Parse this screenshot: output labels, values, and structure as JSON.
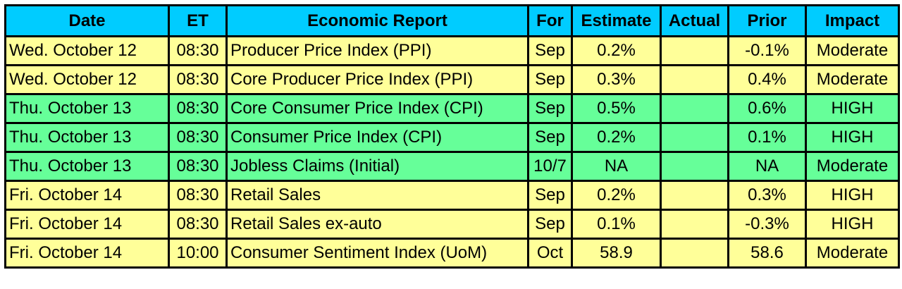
{
  "headers": {
    "date": "Date",
    "et": "ET",
    "report": "Economic Report",
    "for": "For",
    "estimate": "Estimate",
    "actual": "Actual",
    "prior": "Prior",
    "impact": "Impact"
  },
  "row_colors": {
    "moderate": "#ffff99",
    "high": "#66ff99",
    "header": "#00ccff"
  },
  "rows": [
    {
      "date": "Wed. October 12",
      "et": "08:30",
      "report": "Producer Price Index (PPI)",
      "for": "Sep",
      "estimate": "0.2%",
      "actual": "",
      "prior": "-0.1%",
      "impact": "Moderate",
      "style": "moderate"
    },
    {
      "date": "Wed. October 12",
      "et": "08:30",
      "report": "Core Producer Price Index (PPI)",
      "for": "Sep",
      "estimate": "0.3%",
      "actual": "",
      "prior": "0.4%",
      "impact": "Moderate",
      "style": "moderate"
    },
    {
      "date": "Thu. October 13",
      "et": "08:30",
      "report": "Core Consumer Price Index (CPI)",
      "for": "Sep",
      "estimate": "0.5%",
      "actual": "",
      "prior": "0.6%",
      "impact": "HIGH",
      "style": "high"
    },
    {
      "date": "Thu. October 13",
      "et": "08:30",
      "report": "Consumer Price Index (CPI)",
      "for": "Sep",
      "estimate": "0.2%",
      "actual": "",
      "prior": "0.1%",
      "impact": "HIGH",
      "style": "high"
    },
    {
      "date": "Thu. October 13",
      "et": "08:30",
      "report": "Jobless Claims (Initial)",
      "for": "10/7",
      "estimate": "NA",
      "actual": "",
      "prior": "NA",
      "impact": "Moderate",
      "style": "high"
    },
    {
      "date": "Fri. October 14",
      "et": "08:30",
      "report": "Retail Sales",
      "for": "Sep",
      "estimate": "0.2%",
      "actual": "",
      "prior": "0.3%",
      "impact": "HIGH",
      "style": "moderate"
    },
    {
      "date": "Fri. October 14",
      "et": "08:30",
      "report": "Retail Sales ex-auto",
      "for": "Sep",
      "estimate": "0.1%",
      "actual": "",
      "prior": "-0.3%",
      "impact": "HIGH",
      "style": "moderate"
    },
    {
      "date": "Fri. October 14",
      "et": "10:00",
      "report": "Consumer Sentiment Index (UoM)",
      "for": "Oct",
      "estimate": "58.9",
      "actual": "",
      "prior": "58.6",
      "impact": "Moderate",
      "style": "moderate"
    }
  ]
}
